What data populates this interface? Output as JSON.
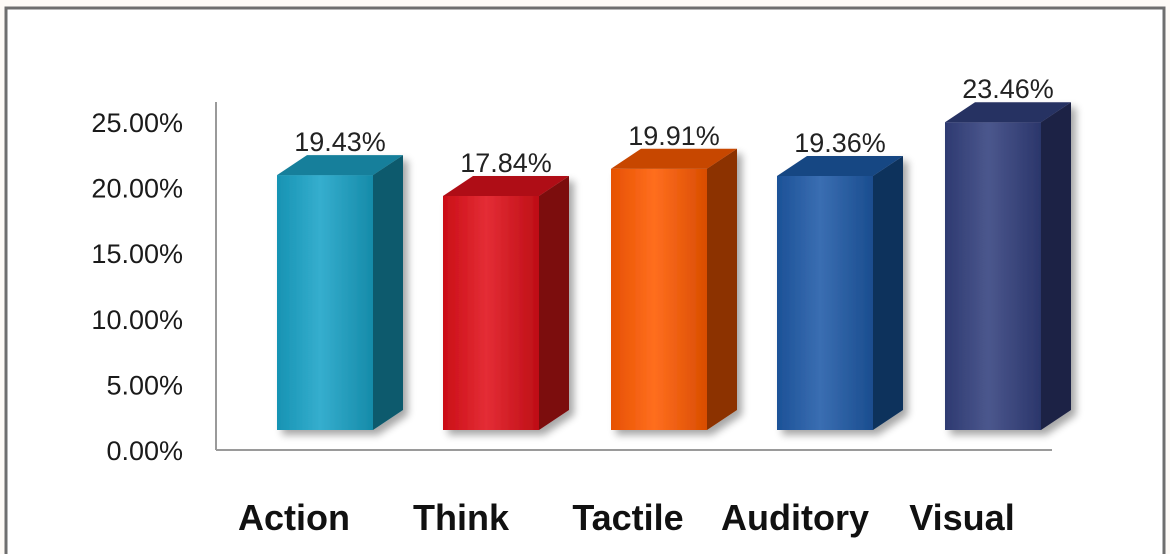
{
  "chart_data": {
    "type": "bar",
    "title": "",
    "xlabel": "",
    "ylabel": "",
    "categories": [
      "Action",
      "Think",
      "Tactile",
      "Auditory",
      "Visual"
    ],
    "values": [
      19.43,
      17.84,
      19.91,
      19.36,
      23.46
    ],
    "data_labels": [
      "19.43%",
      "17.84%",
      "19.91%",
      "19.36%",
      "23.46%"
    ],
    "ylim": [
      0,
      25
    ],
    "y_ticks": [
      0,
      5,
      10,
      15,
      20,
      25
    ],
    "y_tick_labels": [
      "0.00%",
      "5.00%",
      "10.00%",
      "15.00%",
      "20.00%",
      "25.00%"
    ],
    "grid": false,
    "legend": "none",
    "style": "3d-column",
    "colors": [
      "#1aa3c7",
      "#e0101a",
      "#ff5a00",
      "#1f5aa8",
      "#33407e"
    ]
  }
}
